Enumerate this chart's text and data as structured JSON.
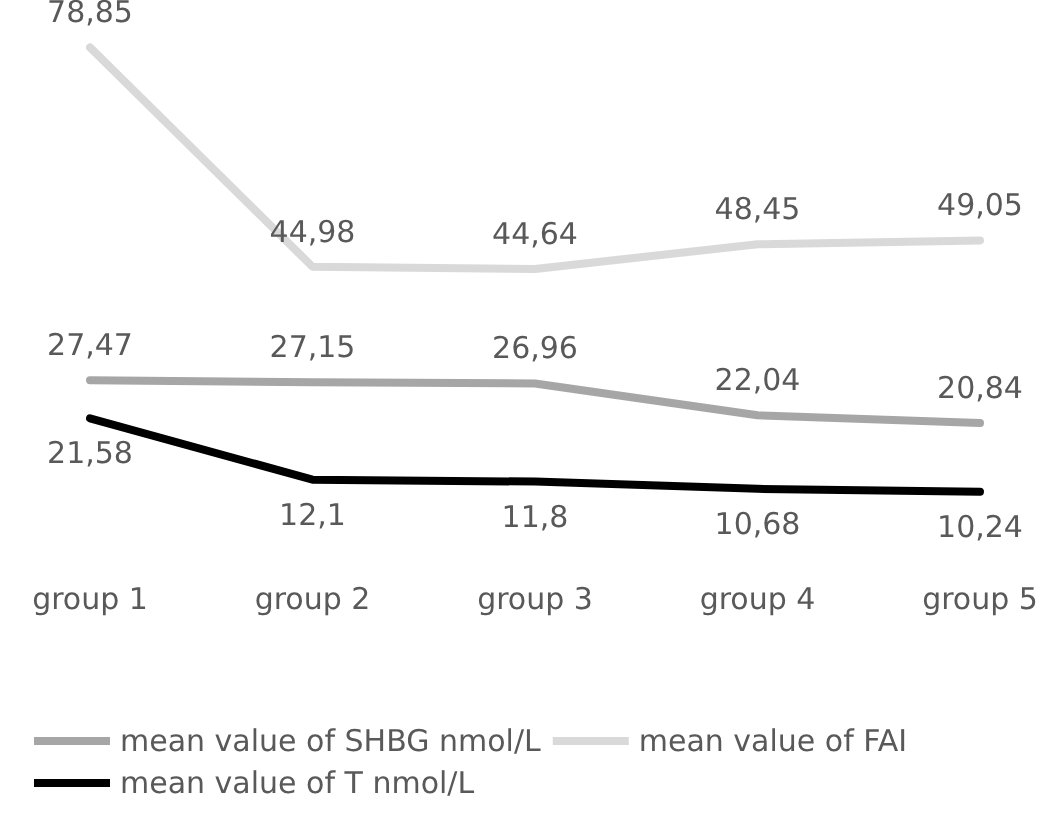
{
  "chart_data": {
    "type": "line",
    "categories": [
      "group 1",
      "group 2",
      "group 3",
      "group 4",
      "group 5"
    ],
    "series": [
      {
        "name": "mean value of SHBG nmol/L",
        "color": "#a6a6a6",
        "values": [
          27.47,
          27.15,
          26.96,
          22.04,
          20.84
        ],
        "value_labels": [
          "27,47",
          "27,15",
          "26,96",
          "22,04",
          "20,84"
        ]
      },
      {
        "name": "mean value of FAI",
        "color": "#d9d9d9",
        "values": [
          78.85,
          44.98,
          44.64,
          48.45,
          49.05
        ],
        "value_labels": [
          "78,85",
          "44,98",
          "44,64",
          "48,45",
          "49,05"
        ]
      },
      {
        "name": "mean value of T nmol/L",
        "color": "#000000",
        "values": [
          21.58,
          12.1,
          11.8,
          10.68,
          10.24
        ],
        "value_labels": [
          "21,58",
          "12,1",
          "11,8",
          "10,68",
          "10,24"
        ]
      }
    ],
    "tick_labels": "x",
    "grid": false,
    "legend": "bottom",
    "marker": "none",
    "line_style": "solid"
  }
}
